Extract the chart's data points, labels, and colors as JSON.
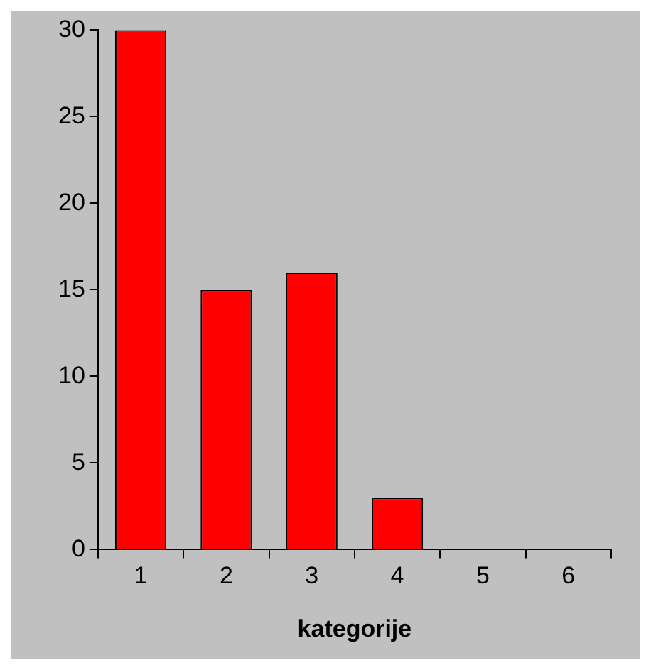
{
  "chart_data": {
    "type": "bar",
    "xlabel": "kategorije",
    "categories": [
      "1",
      "2",
      "3",
      "4",
      "5",
      "6"
    ],
    "values": [
      30,
      15,
      16,
      3,
      0,
      0
    ],
    "color": "#ff0000",
    "ylim": [
      0,
      30
    ],
    "yticks": [
      0,
      5,
      10,
      15,
      20,
      25,
      30
    ],
    "grid": false,
    "legend": false
  }
}
